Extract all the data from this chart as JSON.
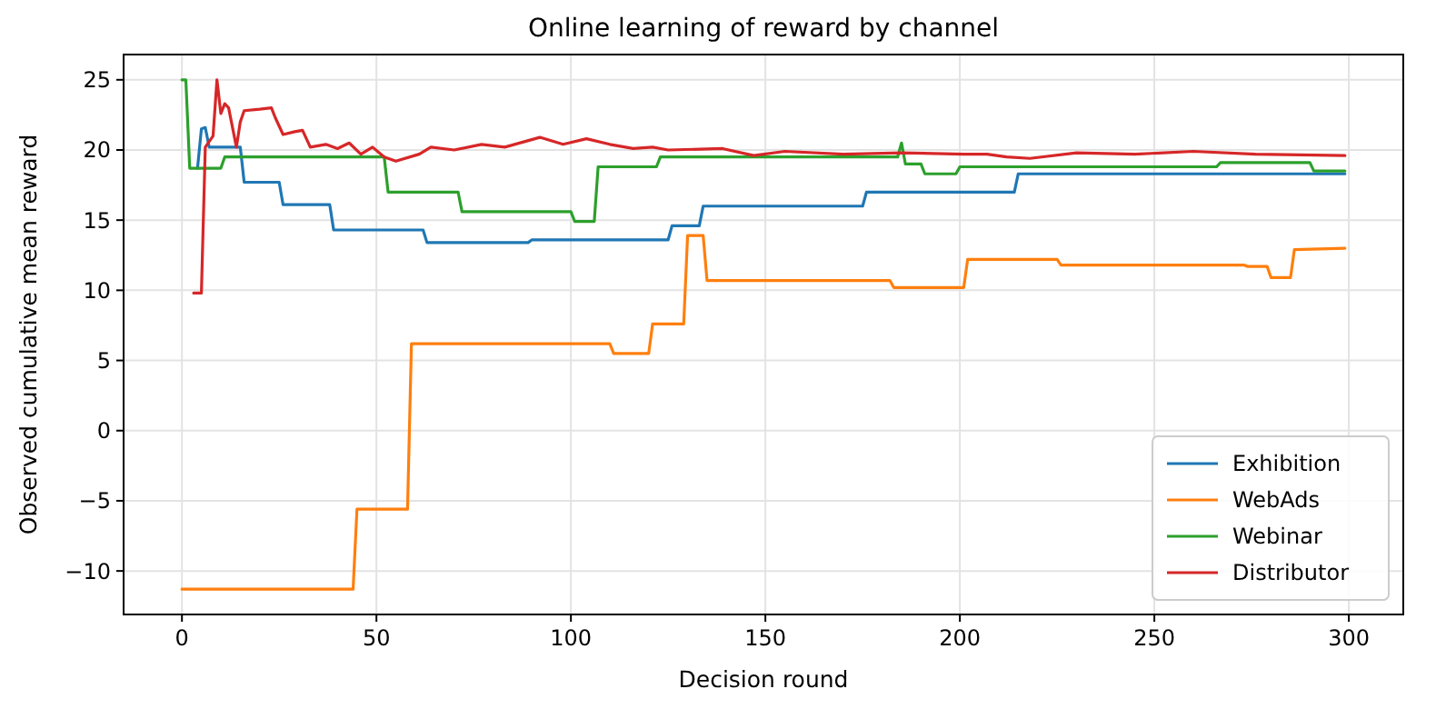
{
  "chart_data": {
    "type": "line",
    "title": "Online learning of reward by channel",
    "xlabel": "Decision round",
    "ylabel": "Observed cumulative mean reward",
    "xlim": [
      -15,
      314
    ],
    "ylim": [
      -13.1,
      26.8
    ],
    "xticks": [
      0,
      50,
      100,
      150,
      200,
      250,
      300
    ],
    "yticks": [
      -10,
      -5,
      0,
      5,
      10,
      15,
      20,
      25
    ],
    "grid": true,
    "legend": "bottom right",
    "line_style": "solid",
    "marker": "none",
    "series": [
      {
        "name": "Exhibition",
        "color": "#1f77b4",
        "x": [
          4,
          5,
          6,
          7,
          15,
          16,
          25,
          26,
          38,
          39,
          62,
          63,
          89,
          90,
          125,
          126,
          133,
          134,
          175,
          176,
          214,
          215,
          299
        ],
        "values": [
          18.7,
          21.5,
          21.6,
          20.2,
          20.2,
          17.7,
          17.7,
          16.1,
          16.1,
          14.3,
          14.3,
          13.4,
          13.4,
          13.6,
          13.6,
          14.6,
          14.6,
          16,
          16,
          17,
          17,
          18.3,
          18.3
        ]
      },
      {
        "name": "WebAds",
        "color": "#ff7f0e",
        "x": [
          0,
          44,
          45,
          58,
          59,
          110,
          111,
          120,
          121,
          129,
          130,
          134,
          135,
          182,
          183,
          201,
          202,
          225,
          226,
          273,
          274,
          279,
          280,
          285,
          286,
          299
        ],
        "values": [
          -11.3,
          -11.3,
          -5.6,
          -5.6,
          6.2,
          6.2,
          5.5,
          5.5,
          7.6,
          7.6,
          13.9,
          13.9,
          10.7,
          10.7,
          10.2,
          10.2,
          12.2,
          12.2,
          11.8,
          11.8,
          11.7,
          11.7,
          10.9,
          10.9,
          12.9,
          13
        ]
      },
      {
        "name": "Webinar",
        "color": "#2ca02c",
        "x": [
          0,
          1,
          2,
          10,
          11,
          52,
          53,
          71,
          72,
          100,
          101,
          106,
          107,
          122,
          123,
          184,
          185,
          186,
          190,
          191,
          199,
          200,
          266,
          267,
          290,
          291,
          299
        ],
        "values": [
          25,
          25,
          18.7,
          18.7,
          19.5,
          19.5,
          17,
          17,
          15.6,
          15.6,
          14.9,
          14.9,
          18.8,
          18.8,
          19.5,
          19.5,
          20.5,
          19,
          19,
          18.3,
          18.3,
          18.8,
          18.8,
          19.1,
          19.1,
          18.5,
          18.5
        ]
      },
      {
        "name": "Distributor",
        "color": "#d62728",
        "x": [
          3,
          5,
          6,
          8,
          9,
          10,
          11,
          12,
          14,
          15,
          16,
          20,
          23,
          24,
          26,
          29,
          31,
          33,
          37,
          40,
          43,
          46,
          49,
          52,
          55,
          61,
          64,
          70,
          77,
          83,
          92,
          98,
          104,
          110,
          116,
          121,
          125,
          139,
          147,
          155,
          170,
          185,
          201,
          207,
          212,
          218,
          230,
          245,
          260,
          276,
          299
        ],
        "values": [
          9.8,
          9.8,
          20.2,
          21,
          25,
          22.6,
          23.3,
          23,
          20.2,
          22,
          22.8,
          22.9,
          23,
          22.3,
          21.1,
          21.3,
          21.4,
          20.2,
          20.4,
          20.1,
          20.5,
          19.7,
          20.2,
          19.5,
          19.2,
          19.7,
          20.2,
          20,
          20.4,
          20.2,
          20.9,
          20.4,
          20.8,
          20.4,
          20.1,
          20.2,
          20,
          20.1,
          19.6,
          19.9,
          19.7,
          19.8,
          19.7,
          19.7,
          19.5,
          19.4,
          19.8,
          19.7,
          19.9,
          19.7,
          19.6
        ]
      }
    ]
  }
}
